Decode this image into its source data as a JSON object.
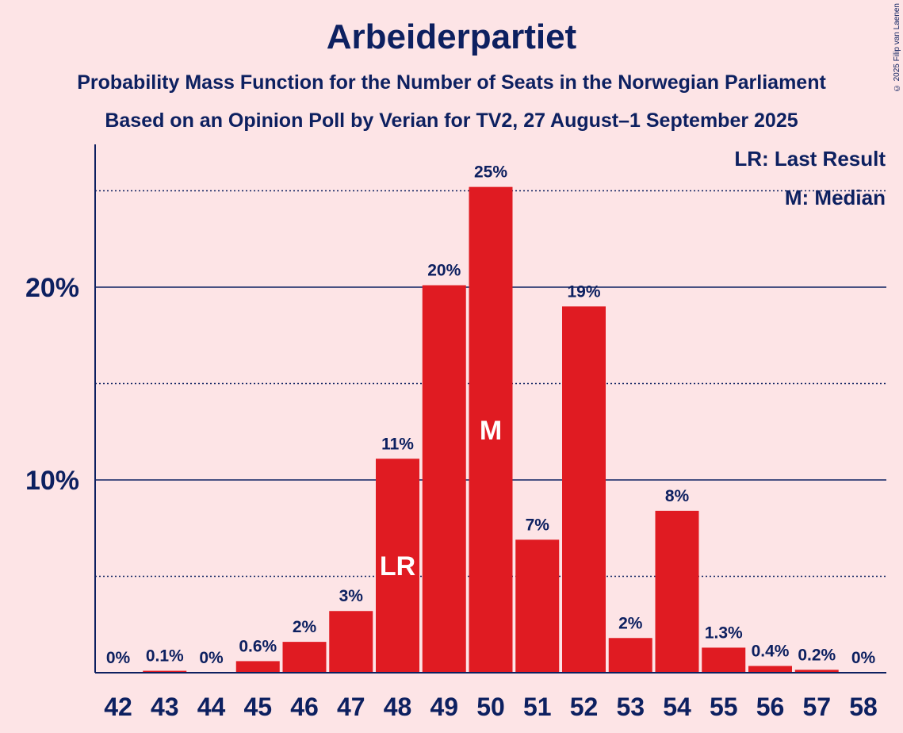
{
  "header": {
    "title": "Arbeiderpartiet",
    "subtitle1": "Probability Mass Function for the Number of Seats in the Norwegian Parliament",
    "subtitle2": "Based on an Opinion Poll by Verian for TV2, 27 August–1 September 2025",
    "copyright": "© 2025 Filip van Laenen"
  },
  "legend": {
    "lr": "LR: Last Result",
    "m": "M: Median"
  },
  "colors": {
    "bar": "#e01b22",
    "text": "#0d2060",
    "background": "#fde4e6"
  },
  "chart_data": {
    "type": "bar",
    "title": "Arbeiderpartiet",
    "xlabel": "",
    "ylabel": "",
    "ylim": [
      0,
      27.5
    ],
    "categories": [
      "42",
      "43",
      "44",
      "45",
      "46",
      "47",
      "48",
      "49",
      "50",
      "51",
      "52",
      "53",
      "54",
      "55",
      "56",
      "57",
      "58"
    ],
    "values": [
      0,
      0.1,
      0,
      0.6,
      1.6,
      3.2,
      11.1,
      20.1,
      25.2,
      6.9,
      19.0,
      1.8,
      8.4,
      1.3,
      0.35,
      0.15,
      0
    ],
    "labels": [
      "0%",
      "0.1%",
      "0%",
      "0.6%",
      "2%",
      "3%",
      "11%",
      "20%",
      "25%",
      "7%",
      "19%",
      "2%",
      "8%",
      "1.3%",
      "0.4%",
      "0.2%",
      "0%"
    ],
    "yticks": [
      {
        "value": 10,
        "label": "10%"
      },
      {
        "value": 20,
        "label": "20%"
      }
    ],
    "minor_gridlines": [
      5,
      15,
      25
    ],
    "last_result": "48",
    "median": "50",
    "last_result_marker": "LR",
    "median_marker": "M"
  }
}
